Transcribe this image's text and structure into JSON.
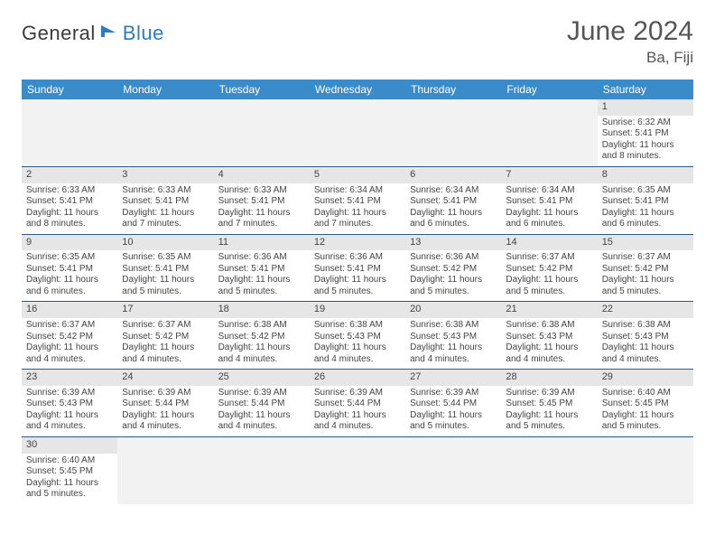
{
  "logo": {
    "dark": "General",
    "blue": "Blue"
  },
  "title": "June 2024",
  "location": "Ba, Fiji",
  "day_header_bg": "#3a8bca",
  "week_border": "#2a5a8a",
  "daynum_bg": "#e6e6e6",
  "empty_bg": "#f2f2f2",
  "day_names": [
    "Sunday",
    "Monday",
    "Tuesday",
    "Wednesday",
    "Thursday",
    "Friday",
    "Saturday"
  ],
  "weeks": [
    [
      {
        "empty": true
      },
      {
        "empty": true
      },
      {
        "empty": true
      },
      {
        "empty": true
      },
      {
        "empty": true
      },
      {
        "empty": true
      },
      {
        "day": "1",
        "sunrise": "Sunrise: 6:32 AM",
        "sunset": "Sunset: 5:41 PM",
        "daylight": "Daylight: 11 hours and 8 minutes."
      }
    ],
    [
      {
        "day": "2",
        "sunrise": "Sunrise: 6:33 AM",
        "sunset": "Sunset: 5:41 PM",
        "daylight": "Daylight: 11 hours and 8 minutes."
      },
      {
        "day": "3",
        "sunrise": "Sunrise: 6:33 AM",
        "sunset": "Sunset: 5:41 PM",
        "daylight": "Daylight: 11 hours and 7 minutes."
      },
      {
        "day": "4",
        "sunrise": "Sunrise: 6:33 AM",
        "sunset": "Sunset: 5:41 PM",
        "daylight": "Daylight: 11 hours and 7 minutes."
      },
      {
        "day": "5",
        "sunrise": "Sunrise: 6:34 AM",
        "sunset": "Sunset: 5:41 PM",
        "daylight": "Daylight: 11 hours and 7 minutes."
      },
      {
        "day": "6",
        "sunrise": "Sunrise: 6:34 AM",
        "sunset": "Sunset: 5:41 PM",
        "daylight": "Daylight: 11 hours and 6 minutes."
      },
      {
        "day": "7",
        "sunrise": "Sunrise: 6:34 AM",
        "sunset": "Sunset: 5:41 PM",
        "daylight": "Daylight: 11 hours and 6 minutes."
      },
      {
        "day": "8",
        "sunrise": "Sunrise: 6:35 AM",
        "sunset": "Sunset: 5:41 PM",
        "daylight": "Daylight: 11 hours and 6 minutes."
      }
    ],
    [
      {
        "day": "9",
        "sunrise": "Sunrise: 6:35 AM",
        "sunset": "Sunset: 5:41 PM",
        "daylight": "Daylight: 11 hours and 6 minutes."
      },
      {
        "day": "10",
        "sunrise": "Sunrise: 6:35 AM",
        "sunset": "Sunset: 5:41 PM",
        "daylight": "Daylight: 11 hours and 5 minutes."
      },
      {
        "day": "11",
        "sunrise": "Sunrise: 6:36 AM",
        "sunset": "Sunset: 5:41 PM",
        "daylight": "Daylight: 11 hours and 5 minutes."
      },
      {
        "day": "12",
        "sunrise": "Sunrise: 6:36 AM",
        "sunset": "Sunset: 5:41 PM",
        "daylight": "Daylight: 11 hours and 5 minutes."
      },
      {
        "day": "13",
        "sunrise": "Sunrise: 6:36 AM",
        "sunset": "Sunset: 5:42 PM",
        "daylight": "Daylight: 11 hours and 5 minutes."
      },
      {
        "day": "14",
        "sunrise": "Sunrise: 6:37 AM",
        "sunset": "Sunset: 5:42 PM",
        "daylight": "Daylight: 11 hours and 5 minutes."
      },
      {
        "day": "15",
        "sunrise": "Sunrise: 6:37 AM",
        "sunset": "Sunset: 5:42 PM",
        "daylight": "Daylight: 11 hours and 5 minutes."
      }
    ],
    [
      {
        "day": "16",
        "sunrise": "Sunrise: 6:37 AM",
        "sunset": "Sunset: 5:42 PM",
        "daylight": "Daylight: 11 hours and 4 minutes."
      },
      {
        "day": "17",
        "sunrise": "Sunrise: 6:37 AM",
        "sunset": "Sunset: 5:42 PM",
        "daylight": "Daylight: 11 hours and 4 minutes."
      },
      {
        "day": "18",
        "sunrise": "Sunrise: 6:38 AM",
        "sunset": "Sunset: 5:42 PM",
        "daylight": "Daylight: 11 hours and 4 minutes."
      },
      {
        "day": "19",
        "sunrise": "Sunrise: 6:38 AM",
        "sunset": "Sunset: 5:43 PM",
        "daylight": "Daylight: 11 hours and 4 minutes."
      },
      {
        "day": "20",
        "sunrise": "Sunrise: 6:38 AM",
        "sunset": "Sunset: 5:43 PM",
        "daylight": "Daylight: 11 hours and 4 minutes."
      },
      {
        "day": "21",
        "sunrise": "Sunrise: 6:38 AM",
        "sunset": "Sunset: 5:43 PM",
        "daylight": "Daylight: 11 hours and 4 minutes."
      },
      {
        "day": "22",
        "sunrise": "Sunrise: 6:38 AM",
        "sunset": "Sunset: 5:43 PM",
        "daylight": "Daylight: 11 hours and 4 minutes."
      }
    ],
    [
      {
        "day": "23",
        "sunrise": "Sunrise: 6:39 AM",
        "sunset": "Sunset: 5:43 PM",
        "daylight": "Daylight: 11 hours and 4 minutes."
      },
      {
        "day": "24",
        "sunrise": "Sunrise: 6:39 AM",
        "sunset": "Sunset: 5:44 PM",
        "daylight": "Daylight: 11 hours and 4 minutes."
      },
      {
        "day": "25",
        "sunrise": "Sunrise: 6:39 AM",
        "sunset": "Sunset: 5:44 PM",
        "daylight": "Daylight: 11 hours and 4 minutes."
      },
      {
        "day": "26",
        "sunrise": "Sunrise: 6:39 AM",
        "sunset": "Sunset: 5:44 PM",
        "daylight": "Daylight: 11 hours and 4 minutes."
      },
      {
        "day": "27",
        "sunrise": "Sunrise: 6:39 AM",
        "sunset": "Sunset: 5:44 PM",
        "daylight": "Daylight: 11 hours and 5 minutes."
      },
      {
        "day": "28",
        "sunrise": "Sunrise: 6:39 AM",
        "sunset": "Sunset: 5:45 PM",
        "daylight": "Daylight: 11 hours and 5 minutes."
      },
      {
        "day": "29",
        "sunrise": "Sunrise: 6:40 AM",
        "sunset": "Sunset: 5:45 PM",
        "daylight": "Daylight: 11 hours and 5 minutes."
      }
    ],
    [
      {
        "day": "30",
        "sunrise": "Sunrise: 6:40 AM",
        "sunset": "Sunset: 5:45 PM",
        "daylight": "Daylight: 11 hours and 5 minutes."
      },
      {
        "empty": true
      },
      {
        "empty": true
      },
      {
        "empty": true
      },
      {
        "empty": true
      },
      {
        "empty": true
      },
      {
        "empty": true
      }
    ]
  ]
}
